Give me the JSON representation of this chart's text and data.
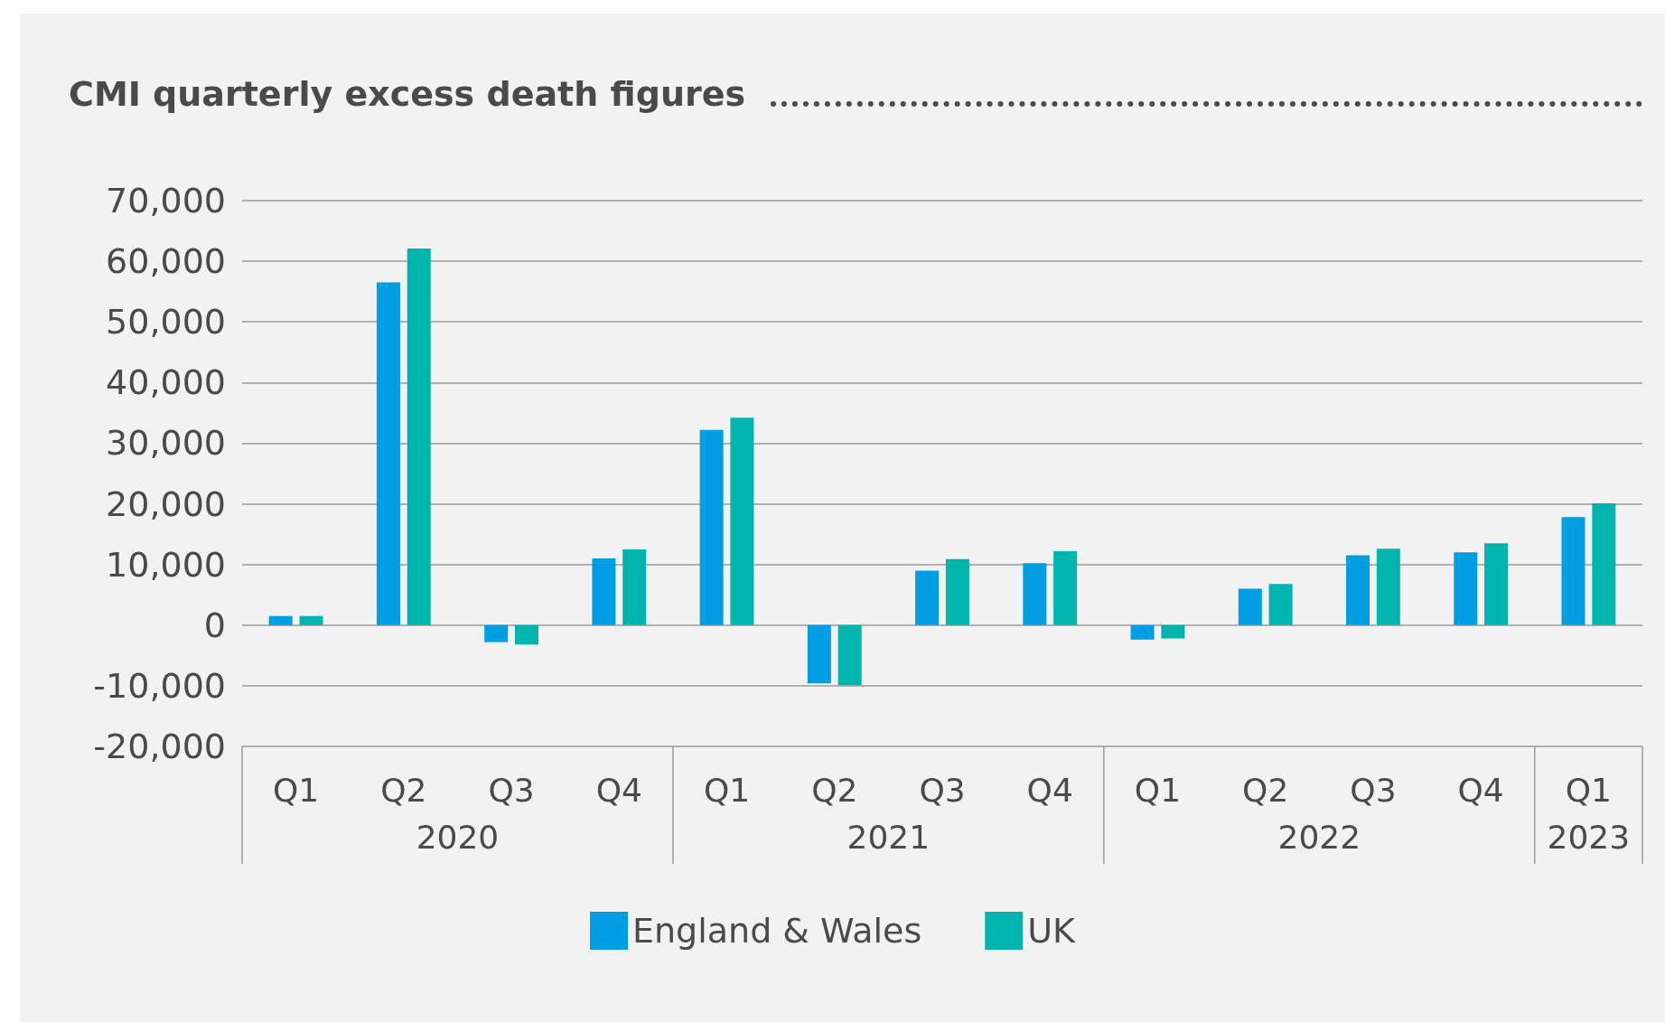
{
  "chart_data": {
    "type": "bar",
    "title": "CMI quarterly excess death figures",
    "categories": [
      "Q1",
      "Q2",
      "Q3",
      "Q4",
      "Q1",
      "Q2",
      "Q3",
      "Q4",
      "Q1",
      "Q2",
      "Q3",
      "Q4",
      "Q1"
    ],
    "annotations": [
      "2020",
      "2021",
      "2022",
      "2023"
    ],
    "series": [
      {
        "name": "England & Wales",
        "color": "#009fe3",
        "values": [
          1500,
          56500,
          -2800,
          11000,
          32200,
          -9600,
          9000,
          10200,
          -2400,
          6000,
          11500,
          12000,
          17800
        ]
      },
      {
        "name": "UK",
        "color": "#00b5ad",
        "values": [
          1500,
          62100,
          -3200,
          12500,
          34200,
          -9900,
          10900,
          12200,
          -2200,
          6800,
          12600,
          13500,
          20100
        ]
      }
    ],
    "ylim": [
      -20000,
      70000
    ],
    "yticks": [
      {
        "value": -20000,
        "label": "-20,000"
      },
      {
        "value": -10000,
        "label": "-10,000"
      },
      0,
      {
        "value": 10000,
        "label": "10,000"
      },
      {
        "value": 20000,
        "label": "20,000"
      },
      {
        "value": 30000,
        "label": "30,000"
      },
      {
        "value": 40000,
        "label": "40,000"
      },
      {
        "value": 50000,
        "label": "50,000"
      },
      {
        "value": 60000,
        "label": "60,000"
      },
      {
        "value": 70000,
        "label": "70,000"
      }
    ],
    "grid": "y",
    "legend": "bottom"
  }
}
